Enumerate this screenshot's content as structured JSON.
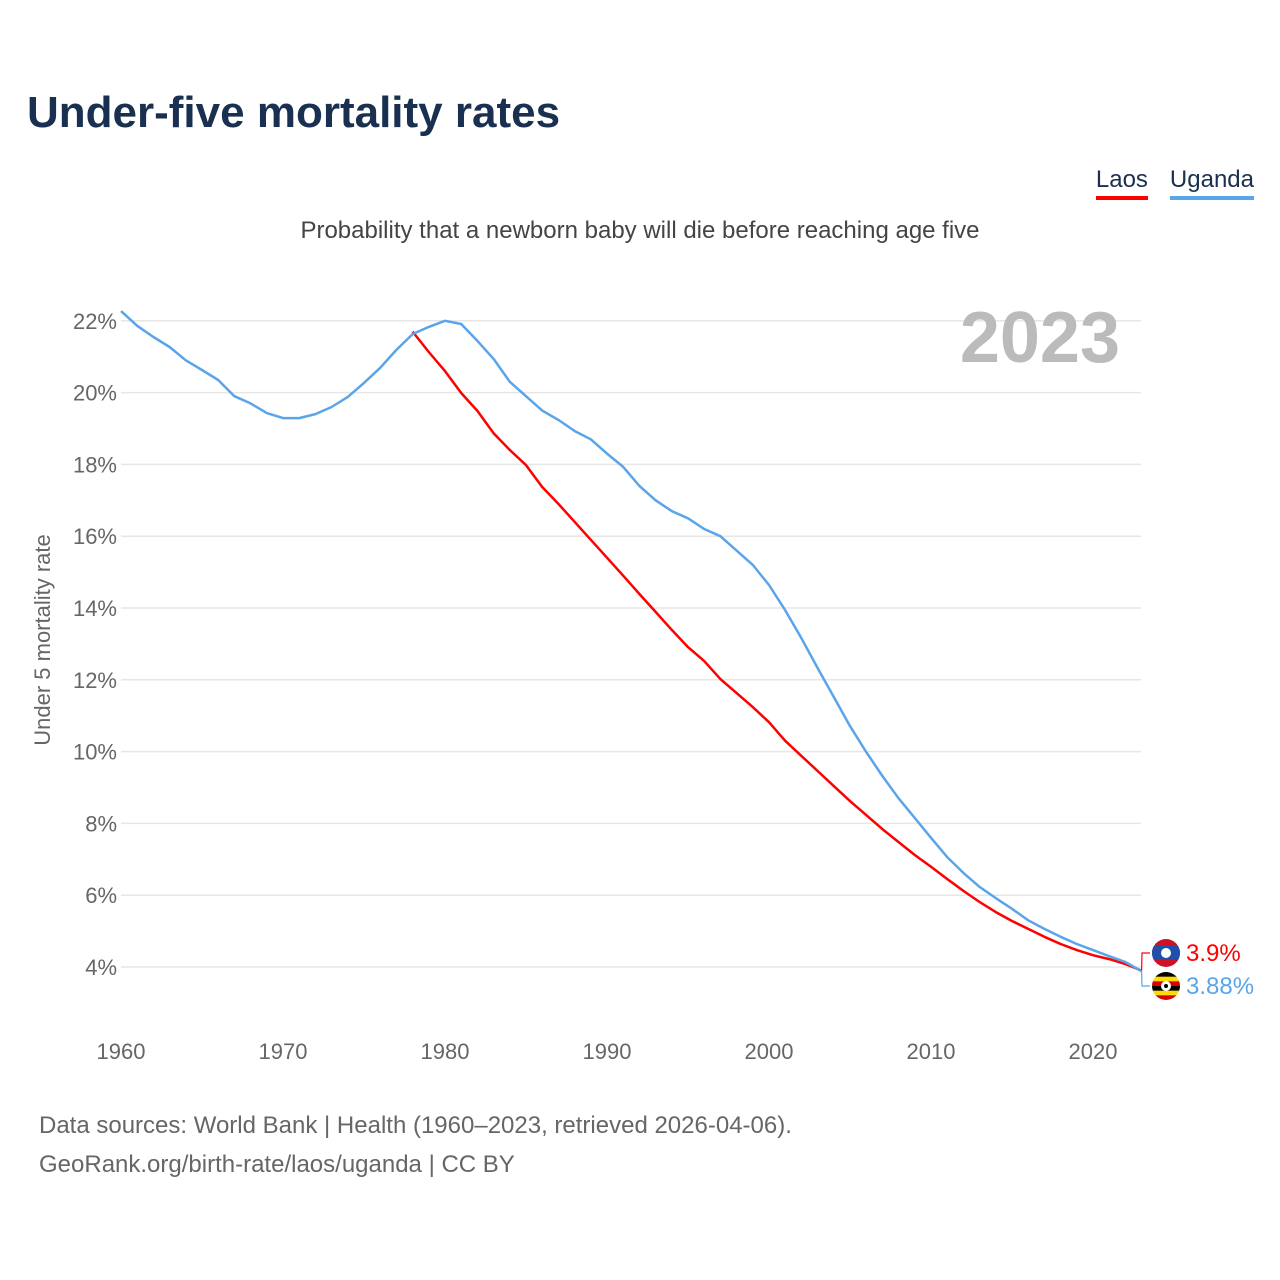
{
  "chart_data": {
    "type": "line",
    "title": "Under-five mortality rates",
    "subtitle": "Probability that a newborn baby will die before reaching age five",
    "ylabel": "Under 5 mortality rate",
    "xlabel": "",
    "year_label": "2023",
    "xlim": [
      1960,
      2023
    ],
    "ylim": [
      3,
      23
    ],
    "x_ticks": [
      "1960",
      "1970",
      "1980",
      "1990",
      "2000",
      "2010",
      "2020"
    ],
    "y_ticks": [
      "4%",
      "6%",
      "8%",
      "10%",
      "12%",
      "14%",
      "16%",
      "18%",
      "20%",
      "22%"
    ],
    "grid": true,
    "legend": "top-right",
    "series": [
      {
        "name": "Laos",
        "color": "#ff0000",
        "end_label": "3.9%",
        "start_year": 1978,
        "values": [
          21.7,
          21.13,
          20.6,
          19.99,
          19.49,
          18.87,
          18.4,
          17.98,
          17.37,
          16.9,
          16.4,
          15.9,
          15.4,
          14.9,
          14.39,
          13.89,
          13.39,
          12.91,
          12.52,
          12.02,
          11.63,
          11.24,
          10.82,
          10.3,
          9.88,
          9.46,
          9.04,
          8.62,
          8.23,
          7.84,
          7.48,
          7.12,
          6.79,
          6.45,
          6.12,
          5.81,
          5.53,
          5.28,
          5.06,
          4.84,
          4.64,
          4.47,
          4.33,
          4.22,
          4.08,
          3.9
        ]
      },
      {
        "name": "Uganda",
        "color": "#5aa5ea",
        "end_label": "3.88%",
        "start_year": 1960,
        "values": [
          22.27,
          21.86,
          21.55,
          21.27,
          20.9,
          20.63,
          20.35,
          19.9,
          19.7,
          19.43,
          19.29,
          19.29,
          19.4,
          19.6,
          19.88,
          20.27,
          20.69,
          21.19,
          21.63,
          21.83,
          22.0,
          21.91,
          21.44,
          20.94,
          20.3,
          19.9,
          19.5,
          19.24,
          18.93,
          18.7,
          18.3,
          17.93,
          17.4,
          17.0,
          16.7,
          16.5,
          16.2,
          16.0,
          15.6,
          15.2,
          14.64,
          13.94,
          13.16,
          12.33,
          11.52,
          10.71,
          9.99,
          9.32,
          8.7,
          8.15,
          7.6,
          7.06,
          6.62,
          6.23,
          5.92,
          5.62,
          5.3,
          5.06,
          4.84,
          4.64,
          4.47,
          4.3,
          4.14,
          3.88
        ]
      }
    ]
  },
  "footer": {
    "line1": "Data sources: World Bank | Health (1960–2023, retrieved 2026-04-06).",
    "line2": "GeoRank.org/birth-rate/laos/uganda | CC BY"
  }
}
